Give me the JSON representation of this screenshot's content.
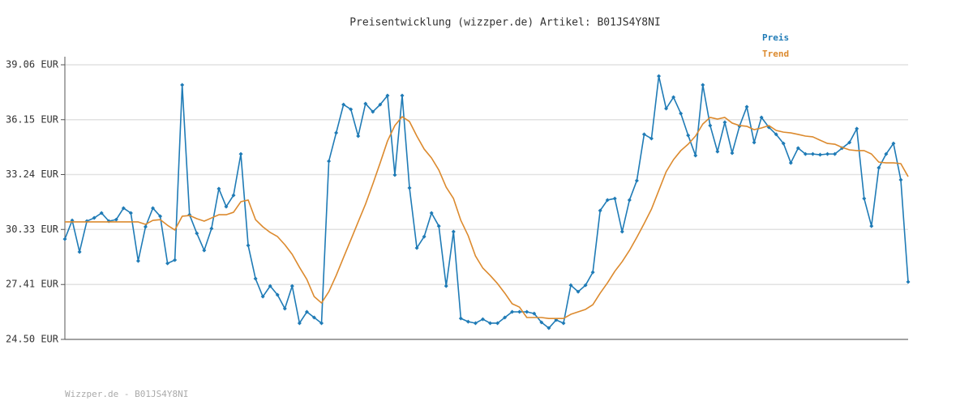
{
  "chart_data": {
    "type": "line",
    "title": "Preisentwicklung (wizzper.de) Artikel: B01JS4Y8NI",
    "footer": "Wizzper.de - B01JS4Y8NI",
    "ylim": [
      24.5,
      39.06
    ],
    "yticks": [
      {
        "value": 24.5,
        "label": "24.50 EUR"
      },
      {
        "value": 27.41,
        "label": "27.41 EUR"
      },
      {
        "value": 30.33,
        "label": "30.33 EUR"
      },
      {
        "value": 33.24,
        "label": "33.24 EUR"
      },
      {
        "value": 36.15,
        "label": "36.15 EUR"
      },
      {
        "value": 39.06,
        "label": "39.06 EUR"
      }
    ],
    "grid": true,
    "legend": "top-right",
    "series": [
      {
        "name": "Preis",
        "color": "#1f7bb6",
        "markers": true,
        "values": [
          29.82,
          30.81,
          29.14,
          30.77,
          30.94,
          31.2,
          30.77,
          30.85,
          31.46,
          31.2,
          28.66,
          30.47,
          31.46,
          31.03,
          28.53,
          28.71,
          37.99,
          31.11,
          30.12,
          29.22,
          30.38,
          32.49,
          31.54,
          32.14,
          34.33,
          29.48,
          27.72,
          26.77,
          27.33,
          26.86,
          26.13,
          27.33,
          25.36,
          25.96,
          25.66,
          25.36,
          33.95,
          35.45,
          36.95,
          36.7,
          35.28,
          37.0,
          36.57,
          36.95,
          37.43,
          33.22,
          37.43,
          32.53,
          29.35,
          29.95,
          31.2,
          30.51,
          27.33,
          30.21,
          25.61,
          25.44,
          25.36,
          25.57,
          25.36,
          25.36,
          25.66,
          25.96,
          25.96,
          25.96,
          25.87,
          25.4,
          25.1,
          25.53,
          25.36,
          27.37,
          27.03,
          27.37,
          28.06,
          31.33,
          31.89,
          31.97,
          30.21,
          31.89,
          32.92,
          35.37,
          35.15,
          38.46,
          36.74,
          37.34,
          36.48,
          35.32,
          34.25,
          37.99,
          35.84,
          34.46,
          36.01,
          34.38,
          35.8,
          36.83,
          34.94,
          36.27,
          35.75,
          35.37,
          34.89,
          33.86,
          34.64,
          34.33,
          34.33,
          34.29,
          34.33,
          34.33,
          34.64,
          34.94,
          35.67,
          31.97,
          30.51,
          33.6,
          34.33,
          34.89,
          32.96,
          27.55
        ]
      },
      {
        "name": "Trend",
        "color": "#dc8a2e",
        "markers": false,
        "values": [
          30.73,
          30.73,
          30.73,
          30.73,
          30.73,
          30.73,
          30.73,
          30.73,
          30.73,
          30.73,
          30.73,
          30.6,
          30.81,
          30.85,
          30.55,
          30.3,
          31.03,
          31.07,
          30.9,
          30.77,
          30.94,
          31.11,
          31.11,
          31.24,
          31.8,
          31.89,
          30.85,
          30.47,
          30.17,
          29.95,
          29.52,
          29.01,
          28.32,
          27.68,
          26.77,
          26.43,
          27.03,
          27.89,
          28.84,
          29.78,
          30.73,
          31.67,
          32.74,
          33.86,
          35.02,
          35.84,
          36.31,
          36.05,
          35.28,
          34.59,
          34.12,
          33.48,
          32.57,
          31.97,
          30.81,
          30.0,
          28.92,
          28.28,
          27.89,
          27.46,
          26.95,
          26.39,
          26.21,
          25.66,
          25.66,
          25.66,
          25.61,
          25.61,
          25.61,
          25.83,
          25.96,
          26.09,
          26.34,
          26.95,
          27.5,
          28.11,
          28.62,
          29.22,
          29.91,
          30.64,
          31.41,
          32.4,
          33.39,
          34.03,
          34.51,
          34.85,
          35.28,
          35.92,
          36.27,
          36.18,
          36.27,
          35.97,
          35.84,
          35.8,
          35.62,
          35.71,
          35.84,
          35.58,
          35.49,
          35.45,
          35.37,
          35.28,
          35.24,
          35.06,
          34.89,
          34.85,
          34.68,
          34.55,
          34.51,
          34.51,
          34.33,
          33.9,
          33.86,
          33.86,
          33.82,
          33.13
        ]
      }
    ]
  }
}
